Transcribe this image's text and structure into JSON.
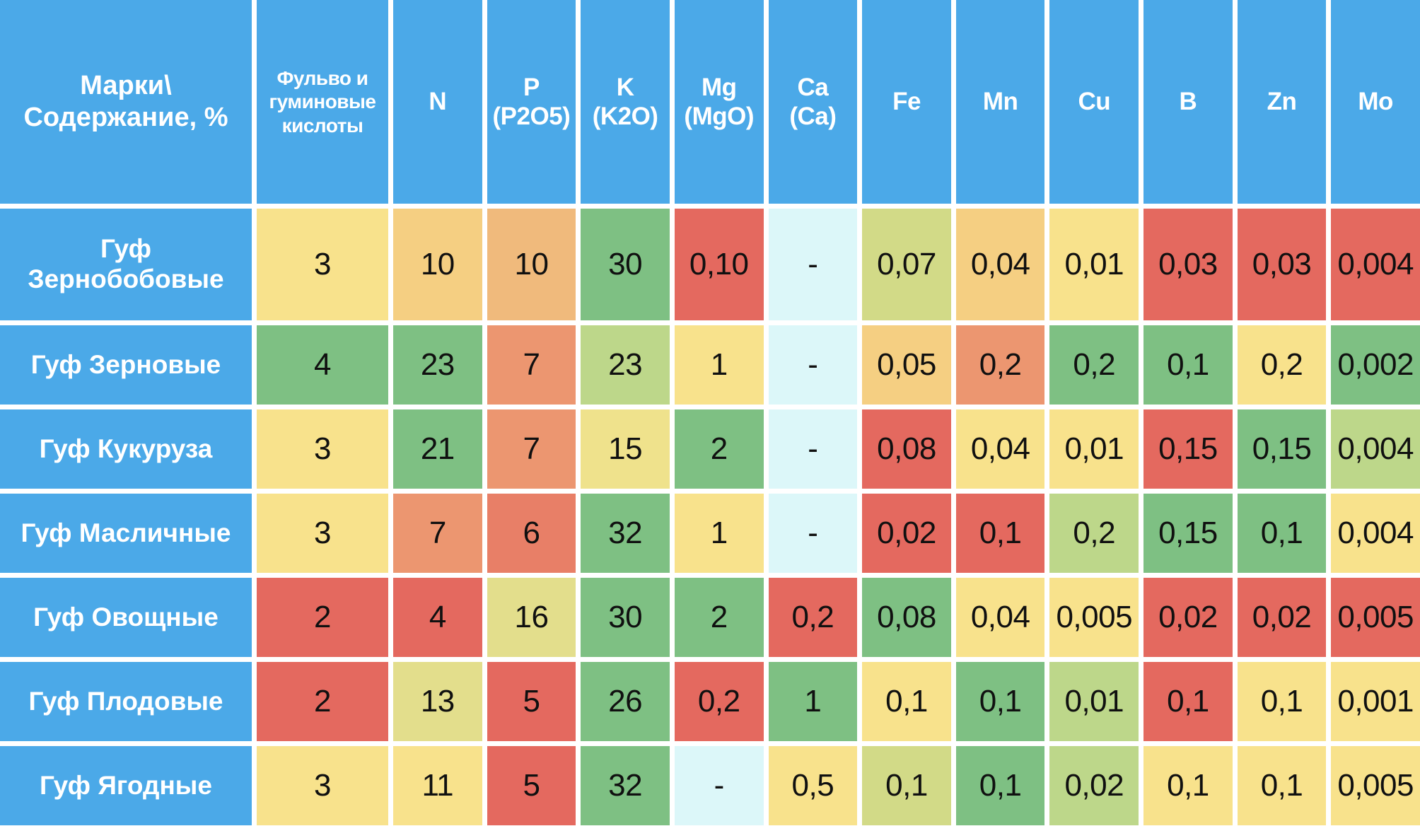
{
  "colors": {
    "header_blue": "#4BA9E8",
    "grid_background": "#FFFFFF",
    "value_text": "#101010",
    "header_text": "#FFFFFF"
  },
  "chart_data": {
    "type": "table",
    "title": "",
    "corner_header": "Марки\\\nСодержание, %",
    "columns": [
      "Фульво и гуминовые кислоты",
      "N",
      "P\n(P2O5)",
      "K\n(K2O)",
      "Mg\n(MgO)",
      "Ca\n(Ca)",
      "Fe",
      "Mn",
      "Cu",
      "B",
      "Zn",
      "Mo"
    ],
    "palette": {
      "yellow": "#F8E28C",
      "pale_yellow": "#EFE28C",
      "olive_yellow": "#E3DE8C",
      "olive": "#D2DA87",
      "light_green": "#BDD78A",
      "green": "#7EC083",
      "sand": "#F5CF82",
      "orange": "#F0BA7C",
      "salmon": "#EC9670",
      "salmon_red": "#E87F67",
      "red": "#E4695F",
      "cyan": "#DCF7F9"
    },
    "rows": [
      {
        "label": "Гуф\nЗернобобовые",
        "cells": [
          {
            "v": "3",
            "c": "yellow"
          },
          {
            "v": "10",
            "c": "sand"
          },
          {
            "v": "10",
            "c": "orange"
          },
          {
            "v": "30",
            "c": "green"
          },
          {
            "v": "0,10",
            "c": "red"
          },
          {
            "v": "-",
            "c": "cyan"
          },
          {
            "v": "0,07",
            "c": "olive"
          },
          {
            "v": "0,04",
            "c": "sand"
          },
          {
            "v": "0,01",
            "c": "yellow"
          },
          {
            "v": "0,03",
            "c": "red"
          },
          {
            "v": "0,03",
            "c": "red"
          },
          {
            "v": "0,004",
            "c": "red"
          }
        ]
      },
      {
        "label": "Гуф Зерновые",
        "cells": [
          {
            "v": "4",
            "c": "green"
          },
          {
            "v": "23",
            "c": "green"
          },
          {
            "v": "7",
            "c": "salmon"
          },
          {
            "v": "23",
            "c": "light_green"
          },
          {
            "v": "1",
            "c": "yellow"
          },
          {
            "v": "-",
            "c": "cyan"
          },
          {
            "v": "0,05",
            "c": "sand"
          },
          {
            "v": "0,2",
            "c": "salmon"
          },
          {
            "v": "0,2",
            "c": "green"
          },
          {
            "v": "0,1",
            "c": "green"
          },
          {
            "v": "0,2",
            "c": "yellow"
          },
          {
            "v": "0,002",
            "c": "green"
          }
        ]
      },
      {
        "label": "Гуф Кукуруза",
        "cells": [
          {
            "v": "3",
            "c": "yellow"
          },
          {
            "v": "21",
            "c": "green"
          },
          {
            "v": "7",
            "c": "salmon"
          },
          {
            "v": "15",
            "c": "pale_yellow"
          },
          {
            "v": "2",
            "c": "green"
          },
          {
            "v": "-",
            "c": "cyan"
          },
          {
            "v": "0,08",
            "c": "red"
          },
          {
            "v": "0,04",
            "c": "yellow"
          },
          {
            "v": "0,01",
            "c": "yellow"
          },
          {
            "v": "0,15",
            "c": "red"
          },
          {
            "v": "0,15",
            "c": "green"
          },
          {
            "v": "0,004",
            "c": "light_green"
          }
        ]
      },
      {
        "label": "Гуф Масличные",
        "cells": [
          {
            "v": "3",
            "c": "yellow"
          },
          {
            "v": "7",
            "c": "salmon"
          },
          {
            "v": "6",
            "c": "salmon_red"
          },
          {
            "v": "32",
            "c": "green"
          },
          {
            "v": "1",
            "c": "yellow"
          },
          {
            "v": "-",
            "c": "cyan"
          },
          {
            "v": "0,02",
            "c": "red"
          },
          {
            "v": "0,1",
            "c": "red"
          },
          {
            "v": "0,2",
            "c": "light_green"
          },
          {
            "v": "0,15",
            "c": "green"
          },
          {
            "v": "0,1",
            "c": "green"
          },
          {
            "v": "0,004",
            "c": "yellow"
          }
        ]
      },
      {
        "label": "Гуф Овощные",
        "cells": [
          {
            "v": "2",
            "c": "red"
          },
          {
            "v": "4",
            "c": "red"
          },
          {
            "v": "16",
            "c": "olive_yellow"
          },
          {
            "v": "30",
            "c": "green"
          },
          {
            "v": "2",
            "c": "green"
          },
          {
            "v": "0,2",
            "c": "red"
          },
          {
            "v": "0,08",
            "c": "green"
          },
          {
            "v": "0,04",
            "c": "yellow"
          },
          {
            "v": "0,005",
            "c": "yellow"
          },
          {
            "v": "0,02",
            "c": "red"
          },
          {
            "v": "0,02",
            "c": "red"
          },
          {
            "v": "0,005",
            "c": "red"
          }
        ]
      },
      {
        "label": "Гуф Плодовые",
        "cells": [
          {
            "v": "2",
            "c": "red"
          },
          {
            "v": "13",
            "c": "olive_yellow"
          },
          {
            "v": "5",
            "c": "red"
          },
          {
            "v": "26",
            "c": "green"
          },
          {
            "v": "0,2",
            "c": "red"
          },
          {
            "v": "1",
            "c": "green"
          },
          {
            "v": "0,1",
            "c": "yellow"
          },
          {
            "v": "0,1",
            "c": "green"
          },
          {
            "v": "0,01",
            "c": "light_green"
          },
          {
            "v": "0,1",
            "c": "red"
          },
          {
            "v": "0,1",
            "c": "yellow"
          },
          {
            "v": "0,001",
            "c": "yellow"
          }
        ]
      },
      {
        "label": "Гуф Ягодные",
        "cells": [
          {
            "v": "3",
            "c": "yellow"
          },
          {
            "v": "11",
            "c": "yellow"
          },
          {
            "v": "5",
            "c": "red"
          },
          {
            "v": "32",
            "c": "green"
          },
          {
            "v": "-",
            "c": "cyan"
          },
          {
            "v": "0,5",
            "c": "yellow"
          },
          {
            "v": "0,1",
            "c": "olive"
          },
          {
            "v": "0,1",
            "c": "green"
          },
          {
            "v": "0,02",
            "c": "light_green"
          },
          {
            "v": "0,1",
            "c": "yellow"
          },
          {
            "v": "0,1",
            "c": "yellow"
          },
          {
            "v": "0,005",
            "c": "yellow"
          }
        ]
      }
    ]
  }
}
